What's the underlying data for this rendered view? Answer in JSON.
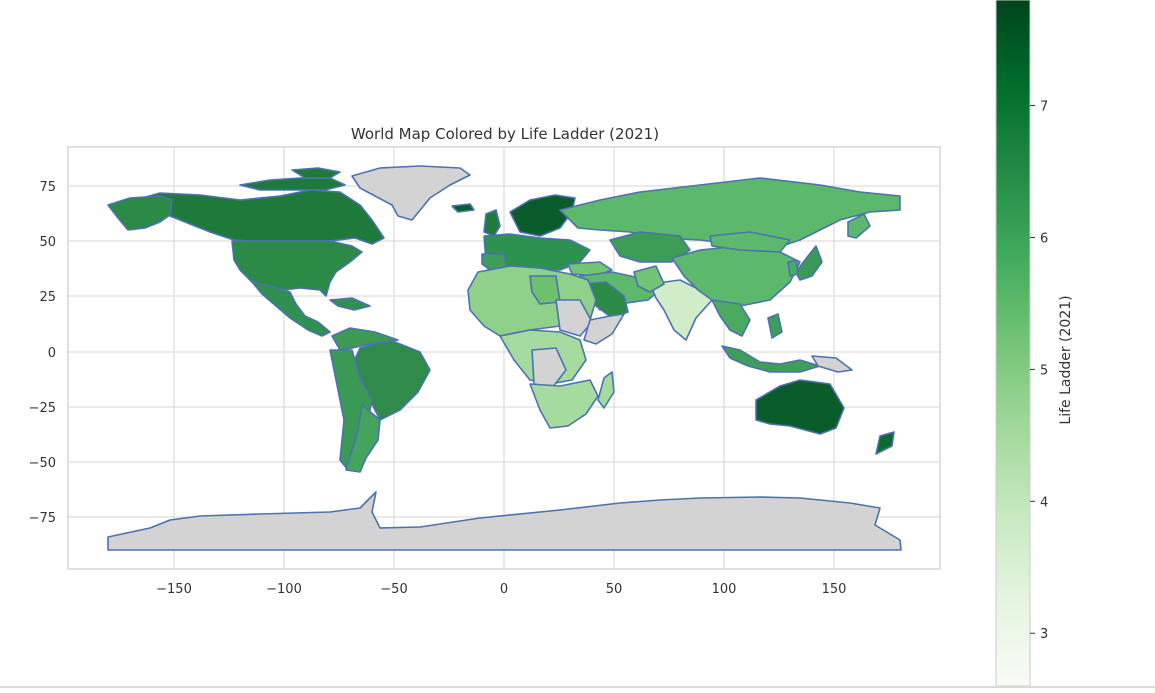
{
  "map": {
    "title": "World Map Colored by Life Ladder (2021)",
    "xticks": [
      "−150",
      "−100",
      "−50",
      "0",
      "50",
      "100",
      "150"
    ],
    "yticks": [
      "75",
      "50",
      "25",
      "0",
      "−25",
      "−50",
      "−75"
    ],
    "grid": true,
    "no_data_color": "#d3d3d3",
    "border_color": "#4c72b0"
  },
  "colorbar": {
    "label": "Life Ladder (2021)",
    "ticks": [
      "7",
      "6",
      "5",
      "4",
      "3"
    ],
    "tick_values": [
      7,
      6,
      5,
      4,
      3
    ],
    "range": [
      2.6,
      7.8
    ],
    "cmap": "Greens",
    "colors": [
      "#f7fcf5",
      "#e5f5e0",
      "#c7e9c0",
      "#a1d99b",
      "#74c476",
      "#41ab5d",
      "#238b45",
      "#006d2c",
      "#00441b"
    ]
  }
}
